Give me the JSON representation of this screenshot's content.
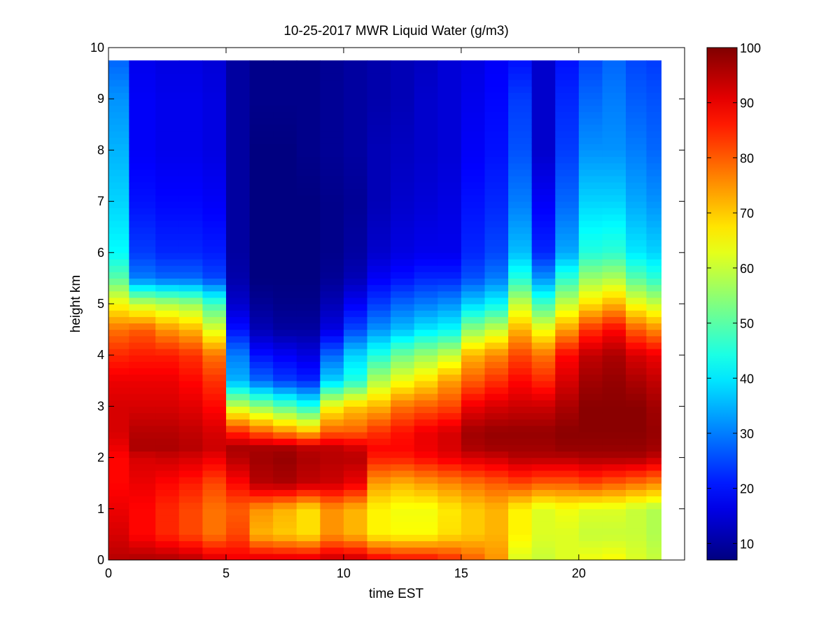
{
  "chart_data": {
    "type": "heatmap",
    "title": "10-25-2017 MWR Liquid Water (g/m3)",
    "xlabel": "time EST",
    "ylabel": "height km",
    "xlim": [
      0,
      24.5
    ],
    "ylim": [
      0,
      10
    ],
    "xticks": [
      0,
      5,
      10,
      15,
      20
    ],
    "yticks": [
      0,
      1,
      2,
      3,
      4,
      5,
      6,
      7,
      8,
      9,
      10
    ],
    "colormap": "jet",
    "colorbar": {
      "range": [
        7,
        100
      ],
      "ticks": [
        10,
        20,
        30,
        40,
        50,
        60,
        70,
        80,
        90,
        100
      ],
      "placement": "right"
    },
    "grid": false,
    "time_range": [
      0,
      23.5
    ],
    "height_range": [
      0,
      9.75
    ],
    "profile_heights": [
      0.0,
      0.5,
      1.0,
      1.5,
      2.0,
      2.2,
      2.5,
      3.0,
      3.5,
      4.0,
      4.5,
      5.0,
      5.5,
      6.0,
      7.0,
      8.0,
      9.0,
      9.75
    ],
    "profiles": [
      {
        "t": 0.25,
        "values": [
          95,
          92,
          90,
          88,
          88,
          90,
          92,
          92,
          90,
          85,
          78,
          65,
          50,
          42,
          38,
          35,
          32,
          28
        ]
      },
      {
        "t": 1.5,
        "values": [
          96,
          88,
          88,
          90,
          92,
          96,
          95,
          92,
          90,
          86,
          80,
          60,
          30,
          24,
          20,
          18,
          18,
          17
        ]
      },
      {
        "t": 2.5,
        "values": [
          96,
          85,
          85,
          88,
          93,
          96,
          95,
          92,
          90,
          86,
          75,
          58,
          28,
          22,
          19,
          17,
          17,
          16
        ]
      },
      {
        "t": 3.5,
        "values": [
          95,
          82,
          82,
          86,
          92,
          95,
          94,
          91,
          88,
          84,
          72,
          56,
          28,
          22,
          19,
          17,
          17,
          16
        ]
      },
      {
        "t": 4.5,
        "values": [
          92,
          78,
          78,
          82,
          90,
          93,
          92,
          88,
          84,
          78,
          62,
          48,
          25,
          21,
          18,
          16,
          16,
          15
        ]
      },
      {
        "t": 5.5,
        "values": [
          90,
          82,
          80,
          88,
          95,
          96,
          85,
          60,
          35,
          30,
          20,
          14,
          11,
          10,
          10,
          10,
          10,
          10
        ]
      },
      {
        "t": 6.5,
        "values": [
          92,
          72,
          75,
          95,
          97,
          96,
          80,
          55,
          28,
          20,
          12,
          9,
          7,
          7,
          7,
          7,
          8,
          8
        ]
      },
      {
        "t": 7.5,
        "values": [
          92,
          70,
          72,
          96,
          98,
          96,
          76,
          50,
          24,
          18,
          10,
          8,
          7,
          7,
          7,
          7,
          8,
          8
        ]
      },
      {
        "t": 8.5,
        "values": [
          92,
          68,
          68,
          94,
          96,
          94,
          72,
          45,
          22,
          16,
          10,
          8,
          7,
          7,
          7,
          8,
          8,
          8
        ]
      },
      {
        "t": 9.5,
        "values": [
          94,
          75,
          75,
          93,
          95,
          94,
          80,
          65,
          38,
          28,
          16,
          12,
          9,
          8,
          8,
          9,
          9,
          9
        ]
      },
      {
        "t": 10.5,
        "values": [
          94,
          72,
          72,
          90,
          95,
          92,
          80,
          70,
          45,
          38,
          25,
          18,
          12,
          10,
          9,
          10,
          10,
          10
        ]
      },
      {
        "t": 11.5,
        "values": [
          90,
          66,
          66,
          74,
          86,
          88,
          84,
          72,
          58,
          45,
          32,
          24,
          18,
          14,
          12,
          12,
          11,
          11
        ]
      },
      {
        "t": 12.5,
        "values": [
          88,
          65,
          64,
          72,
          86,
          88,
          87,
          78,
          64,
          52,
          36,
          28,
          20,
          16,
          14,
          13,
          12,
          12
        ]
      },
      {
        "t": 13.5,
        "values": [
          88,
          65,
          64,
          74,
          88,
          90,
          90,
          80,
          68,
          56,
          40,
          30,
          22,
          17,
          15,
          14,
          14,
          13
        ]
      },
      {
        "t": 14.5,
        "values": [
          85,
          68,
          67,
          76,
          90,
          92,
          92,
          82,
          74,
          60,
          42,
          32,
          22,
          17,
          16,
          15,
          15,
          15
        ]
      },
      {
        "t": 15.5,
        "values": [
          80,
          70,
          70,
          78,
          92,
          96,
          97,
          90,
          80,
          72,
          55,
          38,
          26,
          22,
          20,
          18,
          17,
          16
        ]
      },
      {
        "t": 16.5,
        "values": [
          75,
          72,
          72,
          80,
          93,
          97,
          98,
          92,
          84,
          76,
          60,
          42,
          30,
          25,
          22,
          20,
          19,
          18
        ]
      },
      {
        "t": 17.5,
        "values": [
          62,
          66,
          66,
          82,
          95,
          97,
          98,
          93,
          88,
          82,
          72,
          60,
          45,
          36,
          30,
          26,
          24,
          20
        ]
      },
      {
        "t": 18.5,
        "values": [
          60,
          62,
          62,
          80,
          95,
          97,
          98,
          93,
          85,
          78,
          64,
          48,
          32,
          22,
          18,
          14,
          14,
          14
        ]
      },
      {
        "t": 19.5,
        "values": [
          62,
          62,
          64,
          80,
          95,
          98,
          99,
          96,
          92,
          88,
          74,
          60,
          46,
          34,
          28,
          24,
          22,
          20
        ]
      },
      {
        "t": 20.5,
        "values": [
          64,
          60,
          62,
          82,
          96,
          98,
          99,
          99,
          97,
          94,
          84,
          68,
          56,
          45,
          38,
          32,
          28,
          25
        ]
      },
      {
        "t": 21.5,
        "values": [
          65,
          60,
          62,
          80,
          96,
          98,
          99,
          99,
          98,
          96,
          88,
          72,
          58,
          46,
          38,
          32,
          30,
          28
        ]
      },
      {
        "t": 22.5,
        "values": [
          62,
          60,
          60,
          78,
          96,
          98,
          99,
          99,
          96,
          92,
          80,
          64,
          50,
          40,
          34,
          30,
          27,
          25
        ]
      },
      {
        "t": 23.25,
        "values": [
          60,
          58,
          58,
          76,
          94,
          97,
          98,
          97,
          94,
          90,
          76,
          60,
          46,
          38,
          32,
          28,
          26,
          24
        ]
      }
    ]
  }
}
